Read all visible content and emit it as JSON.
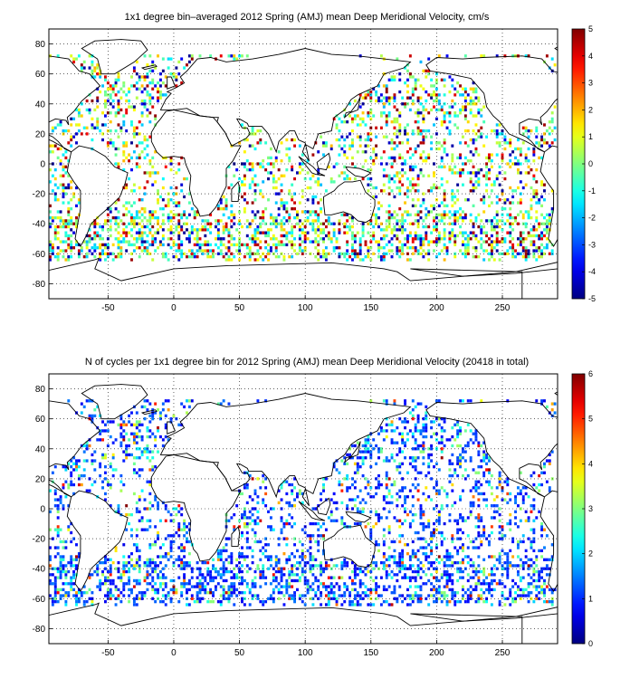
{
  "chart_data": [
    {
      "type": "heatmap",
      "title": "1x1 degree bin–averaged 2012 Spring (AMJ) mean Deep Meridional Velocity, cm/s",
      "xlabel": "",
      "ylabel": "",
      "xlim": [
        -95,
        292
      ],
      "ylim": [
        -90,
        90
      ],
      "x_ticks": [
        "-50",
        "0",
        "50",
        "100",
        "150",
        "200",
        "250"
      ],
      "y_ticks": [
        "80",
        "60",
        "40",
        "20",
        "0",
        "-20",
        "-40",
        "-60",
        "-80"
      ],
      "grid": true,
      "colorbar": {
        "min": -5,
        "max": 5,
        "ticks": [
          "5",
          "4",
          "3",
          "2",
          "1",
          "0",
          "-1",
          "-2",
          "-3",
          "-4",
          "-5"
        ],
        "colormap": "jet"
      }
    },
    {
      "type": "heatmap",
      "title": "N of cycles per 1x1 degree bin for 2012 Spring (AMJ) mean Deep Meridional Velocity (20418 in total)",
      "xlabel": "",
      "ylabel": "",
      "xlim": [
        -95,
        292
      ],
      "ylim": [
        -90,
        90
      ],
      "x_ticks": [
        "-50",
        "0",
        "50",
        "100",
        "150",
        "200",
        "250"
      ],
      "y_ticks": [
        "80",
        "60",
        "40",
        "20",
        "0",
        "-20",
        "-40",
        "-60",
        "-80"
      ],
      "grid": true,
      "colorbar": {
        "min": 0,
        "max": 6,
        "ticks": [
          "6",
          "5",
          "4",
          "3",
          "2",
          "1",
          "0"
        ],
        "colormap": "jet"
      }
    }
  ]
}
